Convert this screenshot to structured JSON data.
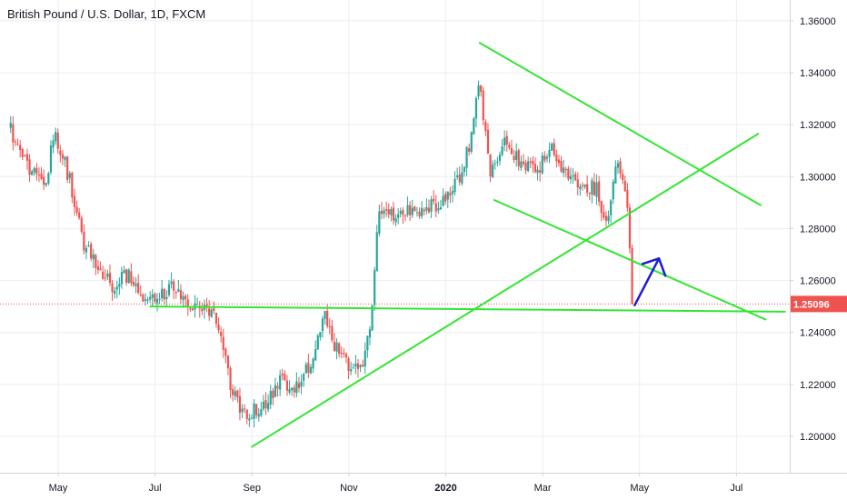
{
  "chart_data": {
    "type": "candlestick",
    "title": "British Pound / U.S. Dollar, 1D, FXCM",
    "ylim": [
      1.186,
      1.368
    ],
    "y_ticks": [
      "1.36000",
      "1.34000",
      "1.32000",
      "1.30000",
      "1.28000",
      "1.26000",
      "1.24000",
      "1.22000",
      "1.20000"
    ],
    "y_tick_values": [
      1.36,
      1.34,
      1.32,
      1.3,
      1.28,
      1.26,
      1.24,
      1.22,
      1.2
    ],
    "x_ticks": [
      "May",
      "Jul",
      "Sep",
      "Nov",
      "2020",
      "Mar",
      "May",
      "Jul"
    ],
    "x_tick_months": [
      1,
      3,
      5,
      7,
      9,
      11,
      13,
      15
    ],
    "x_range_months": [
      -0.2,
      16.1
    ],
    "bold_x_tick": "2020",
    "current_price": "1.25096",
    "current_price_value": 1.25096,
    "colors": {
      "up": "#26a69a",
      "down": "#ef5350",
      "trendline": "#32e632",
      "arrow": "#1c1cd6",
      "price_line": "#ef5350",
      "grid": "#ebeef4"
    },
    "anchors": [
      [
        0.0,
        1.318
      ],
      [
        0.3,
        1.306
      ],
      [
        0.7,
        1.295
      ],
      [
        0.9,
        1.317
      ],
      [
        1.2,
        1.3
      ],
      [
        1.5,
        1.275
      ],
      [
        1.8,
        1.264
      ],
      [
        2.1,
        1.258
      ],
      [
        2.4,
        1.262
      ],
      [
        2.7,
        1.255
      ],
      [
        3.0,
        1.253
      ],
      [
        3.3,
        1.258
      ],
      [
        3.6,
        1.25
      ],
      [
        4.0,
        1.249
      ],
      [
        4.3,
        1.243
      ],
      [
        4.6,
        1.215
      ],
      [
        4.9,
        1.208
      ],
      [
        5.2,
        1.212
      ],
      [
        5.6,
        1.222
      ],
      [
        5.9,
        1.218
      ],
      [
        6.2,
        1.228
      ],
      [
        6.5,
        1.246
      ],
      [
        6.7,
        1.235
      ],
      [
        7.0,
        1.226
      ],
      [
        7.3,
        1.23
      ],
      [
        7.45,
        1.247
      ],
      [
        7.6,
        1.288
      ],
      [
        7.9,
        1.284
      ],
      [
        8.2,
        1.288
      ],
      [
        8.5,
        1.286
      ],
      [
        8.8,
        1.29
      ],
      [
        9.2,
        1.297
      ],
      [
        9.5,
        1.314
      ],
      [
        9.65,
        1.339
      ],
      [
        9.75,
        1.323
      ],
      [
        9.9,
        1.299
      ],
      [
        10.0,
        1.305
      ],
      [
        10.2,
        1.316
      ],
      [
        10.5,
        1.305
      ],
      [
        10.8,
        1.302
      ],
      [
        11.2,
        1.311
      ],
      [
        11.5,
        1.299
      ],
      [
        11.8,
        1.297
      ],
      [
        12.1,
        1.295
      ],
      [
        12.3,
        1.281
      ],
      [
        12.5,
        1.308
      ],
      [
        12.7,
        1.296
      ],
      [
        12.85,
        1.252
      ]
    ],
    "trendlines": [
      {
        "name": "upper-wedge-line",
        "points": [
          [
            9.7,
            1.3515
          ],
          [
            15.5,
            1.289
          ]
        ]
      },
      {
        "name": "lower-wedge-line",
        "points": [
          [
            10.0,
            1.291
          ],
          [
            15.6,
            1.245
          ]
        ]
      },
      {
        "name": "rising-support-line",
        "points": [
          [
            5.0,
            1.196
          ],
          [
            15.45,
            1.3165
          ]
        ]
      },
      {
        "name": "horizontal-support-line",
        "points": [
          [
            2.9,
            1.25
          ],
          [
            16.0,
            1.248
          ]
        ]
      }
    ],
    "arrow": {
      "points": [
        [
          12.9,
          1.2505
        ],
        [
          13.4,
          1.2685
        ]
      ]
    }
  }
}
